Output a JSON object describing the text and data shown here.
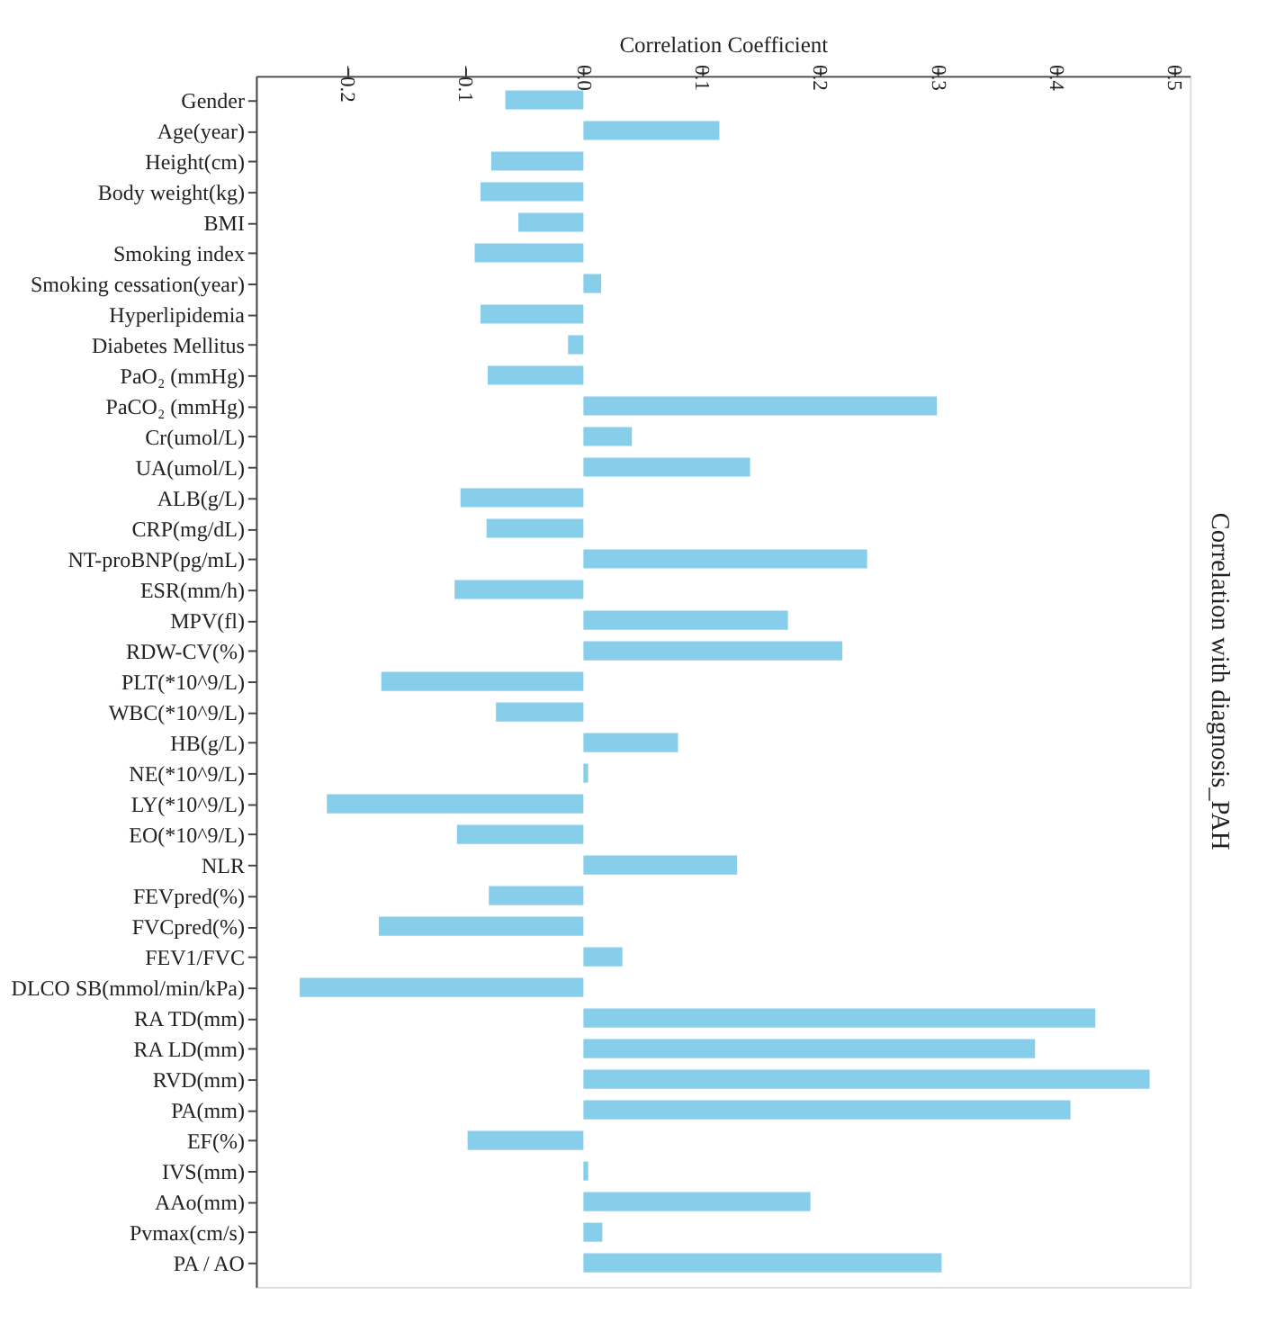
{
  "chart_data": {
    "type": "bar",
    "orientation": "horizontal",
    "xlabel": "Correlation Coefficient",
    "ylabel": "Correlation with diagnosis_PAH",
    "categories": [
      "Gender",
      "Age(year)",
      "Height(cm)",
      "Body weight(kg)",
      "BMI",
      "Smoking index",
      "Smoking cessation(year)",
      "Hyperlipidemia",
      "Diabetes Mellitus",
      "PaO₂ (mmHg)",
      "PaCO₂ (mmHg)",
      "Cr(umol/L)",
      "UA(umol/L)",
      "ALB(g/L)",
      "CRP(mg/dL)",
      "NT-proBNP(pg/mL)",
      "ESR(mm/h)",
      "MPV(fl)",
      "RDW-CV(%)",
      "PLT(*10^9/L)",
      "WBC(*10^9/L)",
      "HB(g/L)",
      "NE(*10^9/L)",
      "LY(*10^9/L)",
      "EO(*10^9/L)",
      "NLR",
      "FEVpred(%)",
      "FVCpred(%)",
      "FEV1/FVC",
      "DLCO SB(mmol/min/kPa)",
      "RA TD(mm)",
      "RA LD(mm)",
      "RVD(mm)",
      "PA(mm)",
      "EF(%)",
      "IVS(mm)",
      "AAo(mm)",
      "Pvmax(cm/s)",
      "PA / AO"
    ],
    "values": [
      -0.066,
      0.115,
      -0.078,
      -0.087,
      -0.055,
      -0.092,
      0.015,
      -0.087,
      -0.013,
      -0.081,
      0.299,
      0.041,
      0.141,
      -0.104,
      -0.082,
      0.24,
      -0.109,
      0.173,
      0.219,
      -0.171,
      -0.074,
      0.08,
      0.004,
      -0.217,
      -0.107,
      0.13,
      -0.08,
      -0.173,
      0.033,
      -0.24,
      0.433,
      0.382,
      0.479,
      0.412,
      -0.098,
      0.004,
      0.192,
      0.016,
      0.303
    ],
    "color": "#87ceeb",
    "xlim": [
      -0.277,
      0.513
    ],
    "xticks": [
      -0.2,
      -0.1,
      {
        "value": 0,
        "label": "0.0"
      },
      0.1,
      0.2,
      0.3,
      0.4,
      0.5
    ],
    "grid": false
  }
}
